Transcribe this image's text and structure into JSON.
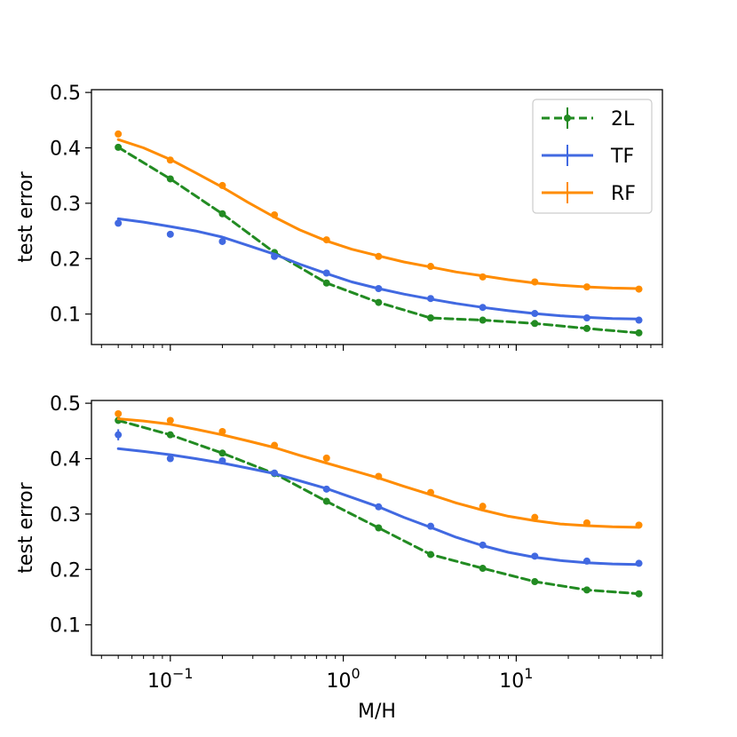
{
  "chart_data": [
    {
      "type": "line",
      "xscale": "log",
      "xlim": [
        0.035,
        70
      ],
      "ylim": [
        0.045,
        0.505
      ],
      "ylabel": "test error",
      "xlabel": "",
      "show_xticklabels": false,
      "yticks": [
        0.1,
        0.2,
        0.3,
        0.4,
        0.5
      ],
      "ytick_labels": [
        "0.1",
        "0.2",
        "0.3",
        "0.4",
        "0.5"
      ],
      "legend": {
        "position": "top-right",
        "entries": [
          "2L",
          "TF",
          "RF"
        ]
      },
      "series": [
        {
          "name": "2L",
          "color": "#228b22",
          "dashed": true,
          "points_x": [
            0.05,
            0.1,
            0.2,
            0.4,
            0.8,
            1.6,
            3.2,
            6.4,
            12.8,
            25.6,
            51.2
          ],
          "points_y": [
            0.401,
            0.344,
            0.281,
            0.211,
            0.156,
            0.121,
            0.093,
            0.089,
            0.083,
            0.074,
            0.066
          ],
          "curve_x": [
            0.05,
            0.1,
            0.2,
            0.4,
            0.8,
            1.6,
            3.2,
            6.4,
            12.8,
            25.6,
            51.2
          ],
          "curve_y": [
            0.401,
            0.344,
            0.281,
            0.211,
            0.156,
            0.121,
            0.093,
            0.089,
            0.083,
            0.074,
            0.066
          ]
        },
        {
          "name": "TF",
          "color": "#4169e1",
          "dashed": false,
          "points_x": [
            0.05,
            0.1,
            0.2,
            0.4,
            0.8,
            1.6,
            3.2,
            6.4,
            12.8,
            25.6,
            51.2
          ],
          "points_y": [
            0.264,
            0.244,
            0.231,
            0.204,
            0.174,
            0.146,
            0.128,
            0.112,
            0.101,
            0.093,
            0.089
          ],
          "curve_x": [
            0.05,
            0.07,
            0.1,
            0.14,
            0.2,
            0.28,
            0.4,
            0.56,
            0.8,
            1.12,
            1.6,
            2.24,
            3.2,
            4.5,
            6.4,
            9,
            12.8,
            18,
            25.6,
            36,
            51.2
          ],
          "curve_y": [
            0.272,
            0.266,
            0.258,
            0.25,
            0.239,
            0.224,
            0.208,
            0.19,
            0.173,
            0.158,
            0.146,
            0.136,
            0.127,
            0.119,
            0.112,
            0.106,
            0.101,
            0.097,
            0.094,
            0.092,
            0.091
          ]
        },
        {
          "name": "RF",
          "color": "#ff8c00",
          "dashed": false,
          "points_x": [
            0.05,
            0.1,
            0.2,
            0.4,
            0.8,
            1.6,
            3.2,
            6.4,
            12.8,
            25.6,
            51.2
          ],
          "points_y": [
            0.425,
            0.378,
            0.332,
            0.279,
            0.234,
            0.204,
            0.186,
            0.167,
            0.158,
            0.149,
            0.145
          ],
          "curve_x": [
            0.05,
            0.07,
            0.1,
            0.14,
            0.2,
            0.28,
            0.4,
            0.56,
            0.8,
            1.12,
            1.6,
            2.24,
            3.2,
            4.5,
            6.4,
            9,
            12.8,
            18,
            25.6,
            36,
            51.2
          ],
          "curve_y": [
            0.415,
            0.4,
            0.379,
            0.355,
            0.329,
            0.302,
            0.275,
            0.252,
            0.232,
            0.217,
            0.205,
            0.194,
            0.185,
            0.176,
            0.169,
            0.162,
            0.156,
            0.152,
            0.149,
            0.147,
            0.146
          ]
        }
      ]
    },
    {
      "type": "line",
      "xscale": "log",
      "xlim": [
        0.035,
        70
      ],
      "ylim": [
        0.045,
        0.505
      ],
      "ylabel": "test error",
      "xlabel": "M/H",
      "show_xticklabels": true,
      "xticks": [
        0.1,
        1,
        10
      ],
      "xtick_labels": [
        {
          "base": "10",
          "exp": "−1"
        },
        {
          "base": "10",
          "exp": "0"
        },
        {
          "base": "10",
          "exp": "1"
        }
      ],
      "yticks": [
        0.1,
        0.2,
        0.3,
        0.4,
        0.5
      ],
      "ytick_labels": [
        "0.1",
        "0.2",
        "0.3",
        "0.4",
        "0.5"
      ],
      "series": [
        {
          "name": "2L",
          "color": "#228b22",
          "dashed": true,
          "points_x": [
            0.05,
            0.1,
            0.2,
            0.4,
            0.8,
            1.6,
            3.2,
            6.4,
            12.8,
            25.6,
            51.2
          ],
          "points_y": [
            0.469,
            0.443,
            0.41,
            0.373,
            0.323,
            0.275,
            0.227,
            0.202,
            0.178,
            0.163,
            0.156
          ],
          "curve_x": [
            0.05,
            0.1,
            0.2,
            0.4,
            0.8,
            1.6,
            3.2,
            6.4,
            12.8,
            25.6,
            51.2
          ],
          "curve_y": [
            0.469,
            0.443,
            0.41,
            0.373,
            0.323,
            0.275,
            0.227,
            0.202,
            0.178,
            0.163,
            0.156
          ]
        },
        {
          "name": "TF",
          "color": "#4169e1",
          "dashed": false,
          "points_x": [
            0.05,
            0.1,
            0.2,
            0.4,
            0.8,
            1.6,
            3.2,
            6.4,
            12.8,
            25.6,
            51.2
          ],
          "points_y": [
            0.443,
            0.4,
            0.396,
            0.374,
            0.345,
            0.313,
            0.278,
            0.244,
            0.224,
            0.215,
            0.211
          ],
          "errorbars": [
            {
              "x": 0.05,
              "y": 0.443,
              "err": 0.01
            }
          ],
          "curve_x": [
            0.05,
            0.07,
            0.1,
            0.14,
            0.2,
            0.28,
            0.4,
            0.56,
            0.8,
            1.12,
            1.6,
            2.24,
            3.2,
            4.5,
            6.4,
            9,
            12.8,
            18,
            25.6,
            36,
            51.2
          ],
          "curve_y": [
            0.418,
            0.413,
            0.407,
            0.4,
            0.392,
            0.383,
            0.373,
            0.36,
            0.346,
            0.33,
            0.313,
            0.294,
            0.276,
            0.258,
            0.243,
            0.231,
            0.222,
            0.216,
            0.212,
            0.21,
            0.209
          ]
        },
        {
          "name": "RF",
          "color": "#ff8c00",
          "dashed": false,
          "points_x": [
            0.05,
            0.1,
            0.2,
            0.4,
            0.8,
            1.6,
            3.2,
            6.4,
            12.8,
            25.6,
            51.2
          ],
          "points_y": [
            0.481,
            0.469,
            0.449,
            0.424,
            0.401,
            0.368,
            0.339,
            0.314,
            0.294,
            0.284,
            0.28
          ],
          "curve_x": [
            0.05,
            0.07,
            0.1,
            0.14,
            0.2,
            0.28,
            0.4,
            0.56,
            0.8,
            1.12,
            1.6,
            2.24,
            3.2,
            4.5,
            6.4,
            9,
            12.8,
            18,
            25.6,
            36,
            51.2
          ],
          "curve_y": [
            0.472,
            0.468,
            0.462,
            0.453,
            0.443,
            0.432,
            0.42,
            0.406,
            0.392,
            0.379,
            0.365,
            0.35,
            0.335,
            0.32,
            0.307,
            0.296,
            0.288,
            0.282,
            0.279,
            0.277,
            0.276
          ]
        }
      ]
    }
  ]
}
